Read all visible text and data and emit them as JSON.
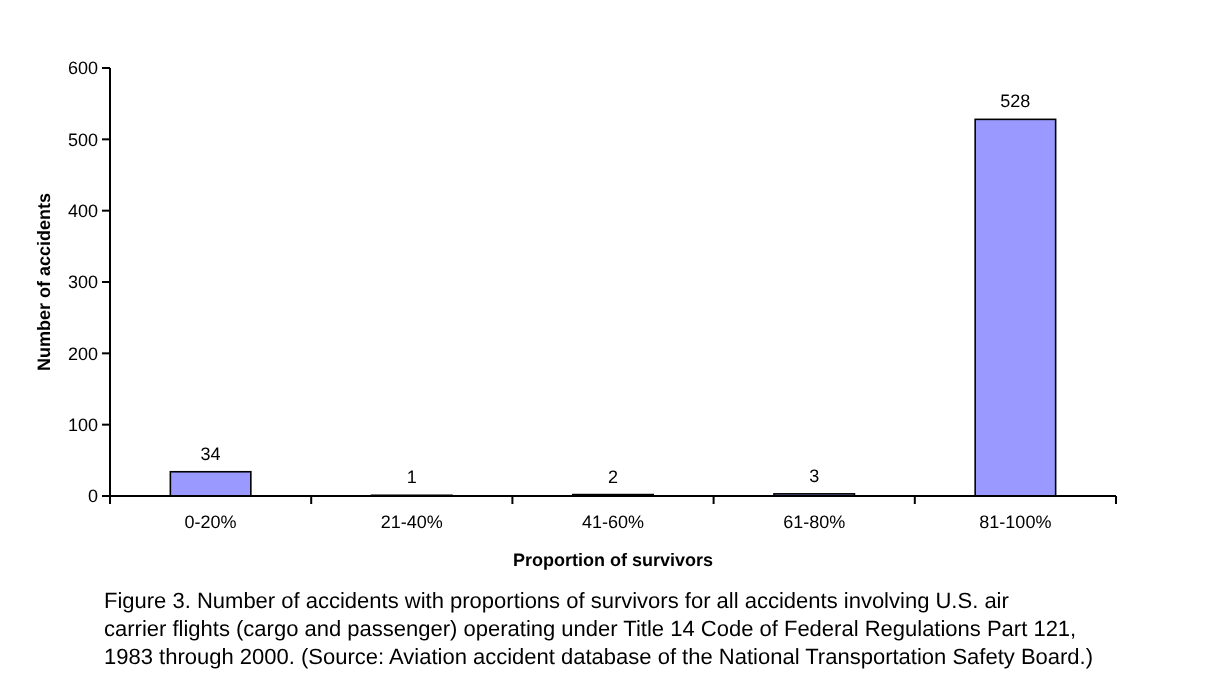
{
  "chart_data": {
    "type": "bar",
    "xlabel": "Proportion of survivors",
    "ylabel": "Number of accidents",
    "categories": [
      "0-20%",
      "21-40%",
      "41-60%",
      "61-80%",
      "81-100%"
    ],
    "values": [
      34,
      1,
      2,
      3,
      528
    ],
    "color": "#9999ff",
    "data_labels": true,
    "ylim": [
      0,
      600
    ],
    "yticks": [
      0,
      100,
      200,
      300,
      400,
      500,
      600
    ],
    "grid": false,
    "annotations": [
      "Figure 3. Number of accidents with proportions of survivors for all accidents involving U.S. air carrier flights (cargo and passenger) operating under Title 14 Code of Federal Regulations Part 121, 1983 through 2000. (Source: Aviation accident database of the National Transportation Safety Board.)"
    ]
  }
}
